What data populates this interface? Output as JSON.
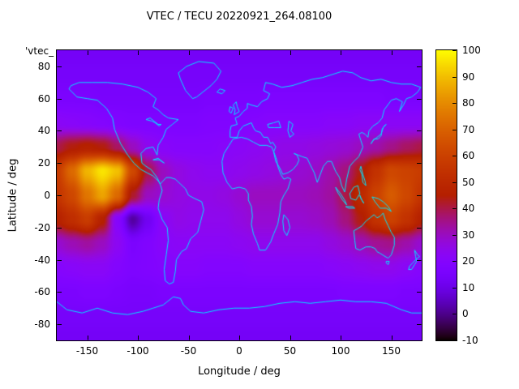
{
  "figure": {
    "title": "VTEC / TECU 20220921_264.08100",
    "corner_label": "'vtec_",
    "xlabel": "Longitude / deg",
    "ylabel": "Latitude / deg"
  },
  "colors": {
    "coastline": "#00e5ff",
    "plot_border": "#000000",
    "text": "#000000",
    "background": "#ffffff"
  },
  "chart_data": {
    "type": "heatmap",
    "title": "VTEC / TECU 20220921_264.08100",
    "subtitle": "",
    "xlabel": "Longitude / deg",
    "ylabel": "Latitude / deg",
    "units": "TECU",
    "xlim": [
      -180,
      180
    ],
    "ylim": [
      -90,
      90
    ],
    "x_ticks": [
      -150,
      -100,
      -50,
      0,
      50,
      100,
      150
    ],
    "y_ticks": [
      80,
      60,
      40,
      20,
      0,
      -20,
      -40,
      -60,
      -80
    ],
    "grid": false,
    "legend_position": "none",
    "colorbar": {
      "min": -10,
      "max": 100,
      "ticks": [
        100,
        90,
        80,
        70,
        60,
        50,
        40,
        30,
        20,
        10,
        0,
        -10
      ],
      "palette": "gnuplot pm3d (black - violet - orange - yellow)"
    },
    "overlay": "world coastlines drawn in cyan on equirectangular projection",
    "grid_lon": [
      -180,
      -165,
      -150,
      -135,
      -120,
      -105,
      -90,
      -75,
      -60,
      -45,
      -30,
      -15,
      0,
      15,
      30,
      45,
      60,
      75,
      90,
      105,
      120,
      135,
      150,
      165,
      180
    ],
    "grid_lat": [
      90,
      75,
      60,
      45,
      30,
      15,
      0,
      -15,
      -30,
      -45,
      -60,
      -75,
      -90
    ],
    "values": [
      [
        13,
        13,
        13,
        13,
        13,
        13,
        13,
        13,
        13,
        13,
        13,
        13,
        13,
        13,
        13,
        13,
        13,
        13,
        13,
        13,
        13,
        13,
        13,
        13,
        13
      ],
      [
        14,
        14,
        14,
        14,
        14,
        14,
        14,
        14,
        14,
        14,
        14,
        14,
        14,
        14,
        14,
        14,
        14,
        14,
        14,
        14,
        14,
        14,
        14,
        14,
        14
      ],
      [
        16,
        16,
        16,
        15,
        15,
        15,
        15,
        15,
        15,
        15,
        16,
        16,
        16,
        16,
        17,
        17,
        17,
        17,
        17,
        17,
        17,
        17,
        16,
        16,
        16
      ],
      [
        22,
        21,
        20,
        19,
        18,
        17,
        17,
        17,
        17,
        17,
        18,
        18,
        18,
        19,
        20,
        20,
        20,
        20,
        21,
        21,
        22,
        22,
        22,
        22,
        22
      ],
      [
        40,
        44,
        46,
        44,
        38,
        30,
        24,
        21,
        20,
        20,
        20,
        21,
        22,
        23,
        24,
        25,
        25,
        26,
        27,
        28,
        30,
        32,
        35,
        38,
        40
      ],
      [
        58,
        72,
        88,
        96,
        90,
        62,
        40,
        30,
        26,
        24,
        23,
        23,
        24,
        25,
        26,
        27,
        28,
        29,
        32,
        36,
        44,
        54,
        62,
        60,
        58
      ],
      [
        55,
        62,
        75,
        85,
        72,
        42,
        30,
        28,
        26,
        25,
        25,
        26,
        28,
        30,
        30,
        30,
        30,
        31,
        33,
        40,
        50,
        60,
        68,
        62,
        55
      ],
      [
        46,
        52,
        58,
        46,
        20,
        2,
        12,
        22,
        25,
        24,
        24,
        24,
        26,
        28,
        28,
        28,
        28,
        29,
        31,
        36,
        44,
        54,
        60,
        54,
        46
      ],
      [
        28,
        31,
        33,
        30,
        23,
        16,
        18,
        21,
        22,
        22,
        22,
        22,
        23,
        24,
        24,
        24,
        24,
        24,
        26,
        28,
        31,
        34,
        35,
        32,
        28
      ],
      [
        20,
        21,
        22,
        22,
        19,
        17,
        18,
        19,
        20,
        20,
        19,
        19,
        19,
        20,
        20,
        20,
        20,
        20,
        21,
        22,
        23,
        24,
        24,
        22,
        20
      ],
      [
        16,
        16,
        17,
        17,
        16,
        15,
        15,
        16,
        16,
        16,
        16,
        16,
        16,
        16,
        16,
        16,
        16,
        16,
        16,
        17,
        17,
        17,
        17,
        16,
        16
      ],
      [
        14,
        14,
        14,
        14,
        14,
        14,
        14,
        14,
        14,
        14,
        14,
        14,
        14,
        14,
        14,
        14,
        14,
        14,
        14,
        14,
        14,
        14,
        14,
        14,
        14
      ],
      [
        13,
        13,
        13,
        13,
        13,
        13,
        13,
        13,
        13,
        13,
        13,
        13,
        13,
        13,
        13,
        13,
        13,
        13,
        13,
        13,
        13,
        13,
        13,
        13,
        13
      ]
    ]
  }
}
